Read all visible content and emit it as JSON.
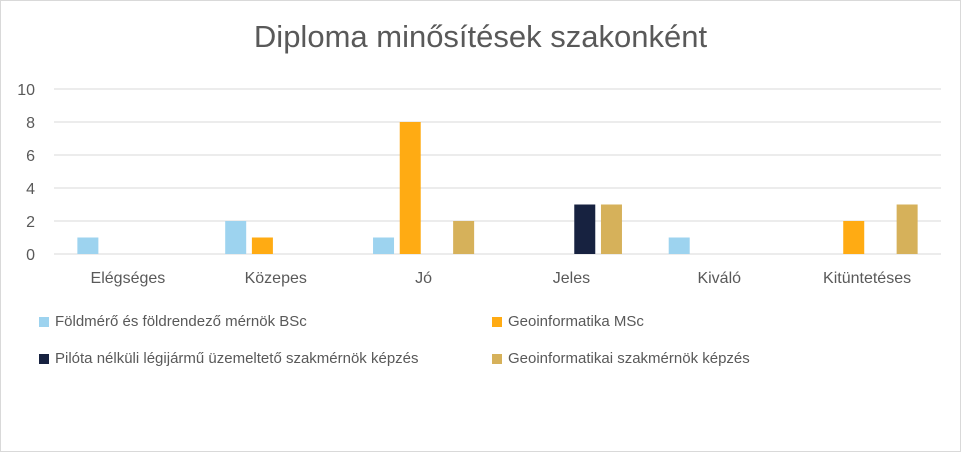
{
  "chart_data": {
    "type": "bar",
    "title": "Diploma minősítések szakonként",
    "categories": [
      "Elégséges",
      "Közepes",
      "Jó",
      "Jeles",
      "Kiváló",
      "Kitüntetéses"
    ],
    "series": [
      {
        "name": "Földmérő és földrendező mérnök BSc",
        "color": "#9dd3ef",
        "values": [
          1,
          2,
          1,
          0,
          1,
          0
        ]
      },
      {
        "name": "Geoinformatika MSc",
        "color": "#ffab13",
        "values": [
          0,
          1,
          8,
          0,
          0,
          2
        ]
      },
      {
        "name": "Pilóta nélküli légijármű üzemeltető szakmérnök képzés",
        "color": "#172240",
        "values": [
          0,
          0,
          0,
          3,
          0,
          0
        ]
      },
      {
        "name": "Geoinformatikai szakmérnök képzés",
        "color": "#d6b15a",
        "values": [
          0,
          0,
          2,
          3,
          0,
          3
        ]
      }
    ],
    "ylim": [
      0,
      10
    ],
    "yticks": [
      0,
      2,
      4,
      6,
      8,
      10
    ],
    "grid": true,
    "legend_position": "bottom"
  }
}
